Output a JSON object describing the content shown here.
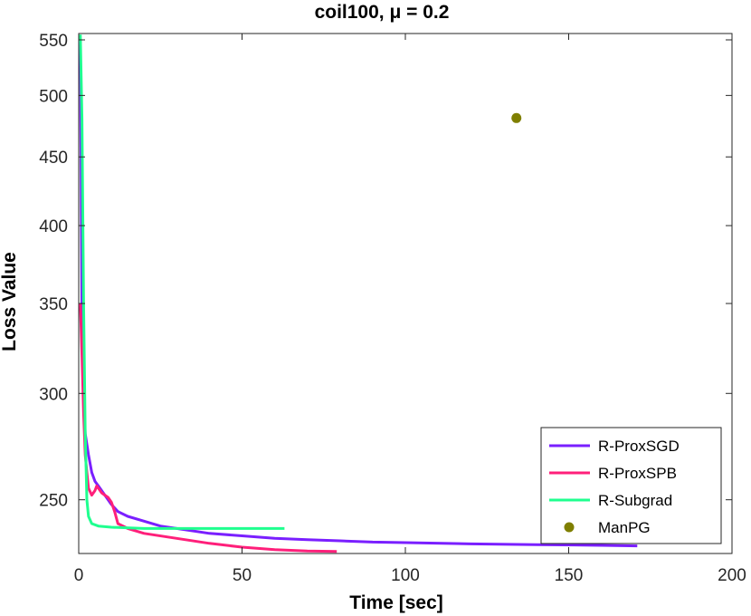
{
  "chart_data": {
    "type": "line",
    "title": "coil100, μ = 0.2",
    "xlabel": "Time [sec]",
    "ylabel": "Loss Value",
    "xlim": [
      0,
      200
    ],
    "ylim": [
      228,
      556
    ],
    "y_scale": "log",
    "xticks": [
      0,
      50,
      100,
      150,
      200
    ],
    "xtick_labels": [
      "0",
      "50",
      "100",
      "150",
      "200"
    ],
    "yticks": [
      250,
      300,
      350,
      400,
      450,
      500,
      550
    ],
    "ytick_labels": [
      "250",
      "300",
      "350",
      "400",
      "450",
      "500",
      "550"
    ],
    "grid": false,
    "legend_position": "bottom-right",
    "series": [
      {
        "name": "R-ProxSGD",
        "kind": "line",
        "color": "#7a1fff",
        "x": [
          0.5,
          1,
          1.5,
          2,
          3,
          4,
          5,
          6,
          8,
          10,
          12,
          15,
          20,
          25,
          30,
          40,
          50,
          60,
          70,
          80,
          90,
          100,
          120,
          140,
          160,
          171
        ],
        "y": [
          550,
          340,
          300,
          280,
          270,
          262,
          258,
          256,
          252,
          248,
          245,
          243,
          241,
          239,
          238,
          236,
          235,
          234,
          233.5,
          233,
          232.5,
          232.3,
          231.8,
          231.5,
          231.2,
          231
        ]
      },
      {
        "name": "R-ProxSPB",
        "kind": "line",
        "color": "#ff1f7a",
        "x": [
          0.5,
          1,
          1.5,
          2,
          2.5,
          3,
          4,
          5,
          5.5,
          6,
          7,
          8,
          9,
          10,
          11,
          12,
          15,
          20,
          30,
          40,
          50,
          60,
          70,
          79
        ],
        "y": [
          350,
          320,
          290,
          270,
          262,
          255,
          252,
          254,
          256,
          255,
          253,
          252,
          251,
          249,
          245,
          240,
          238,
          236,
          234,
          232,
          230.5,
          229.5,
          229,
          228.8
        ]
      },
      {
        "name": "R-Subgrad",
        "kind": "line",
        "color": "#1fff8f",
        "x": [
          0.5,
          1,
          1.5,
          2,
          2.5,
          3,
          4,
          6,
          10,
          20,
          30,
          40,
          50,
          63
        ],
        "y": [
          555,
          480,
          350,
          280,
          250,
          243,
          240,
          239,
          238.5,
          238,
          238,
          238,
          238,
          238
        ]
      },
      {
        "name": "ManPG",
        "kind": "scatter",
        "color": "#7f7f00",
        "x": [
          134
        ],
        "y": [
          481
        ]
      }
    ]
  }
}
